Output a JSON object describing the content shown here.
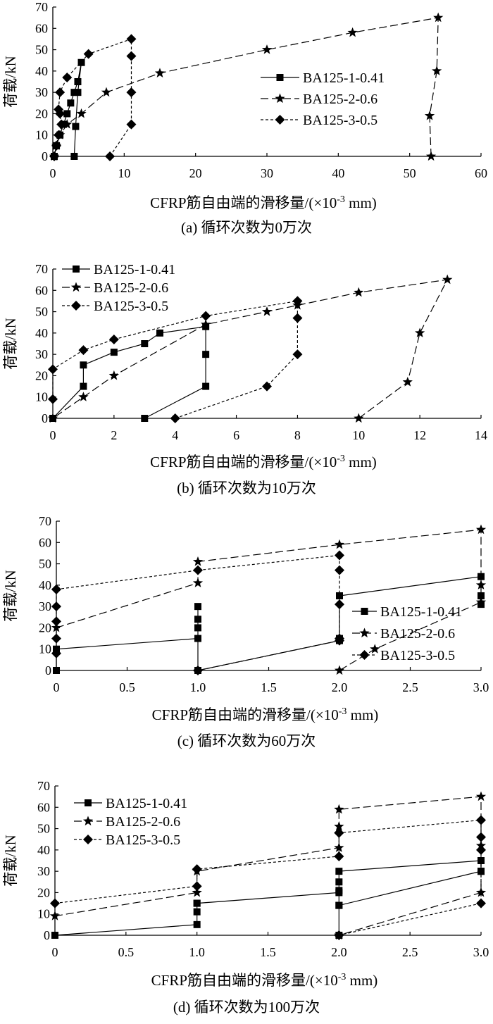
{
  "figure": {
    "xlabel_base": "CFRP筋自由端的滑移量/(×10",
    "xlabel_exp": "-3",
    "xlabel_unit": " mm)"
  },
  "series_styles": {
    "BA125-1-0.41": {
      "marker": "square",
      "dash": "solid"
    },
    "BA125-2-0.6": {
      "marker": "star",
      "dash": "dashed"
    },
    "BA125-3-0.5": {
      "marker": "diamond",
      "dash": "dotted"
    }
  },
  "chart_data": [
    {
      "type": "line",
      "caption": "(a) 循环次数为0万次",
      "ylabel": "荷载/kN",
      "xlim": [
        0,
        60
      ],
      "ylim": [
        0,
        70
      ],
      "xticks": [
        0,
        10,
        20,
        30,
        40,
        50,
        60
      ],
      "xtick_labels": [
        "0",
        "10",
        "20",
        "30",
        "40",
        "50",
        "60"
      ],
      "yticks": [
        0,
        10,
        20,
        30,
        40,
        50,
        60,
        70
      ],
      "legend": "top-right",
      "series": [
        {
          "name": "BA125-1-0.41",
          "x": [
            3,
            3.2,
            3.5,
            4,
            3.5,
            3,
            2.5,
            2,
            1.5,
            1,
            0.5,
            0.2
          ],
          "y": [
            0,
            14,
            30,
            44,
            35,
            30,
            25,
            20,
            15,
            10,
            5,
            0
          ]
        },
        {
          "name": "BA125-2-0.6",
          "x": [
            53,
            52.8,
            53.8,
            54,
            42,
            30,
            15,
            7.5,
            4,
            2,
            1,
            0.5,
            0.2
          ],
          "y": [
            0,
            19,
            40,
            65,
            58,
            50,
            39,
            30,
            20,
            15,
            10,
            5,
            0
          ]
        },
        {
          "name": "BA125-3-0.5",
          "x": [
            8,
            11,
            11,
            11,
            11,
            5,
            2,
            1,
            0.8,
            1,
            1.2,
            0.8,
            0.5,
            0.2
          ],
          "y": [
            0,
            15,
            30,
            47,
            55,
            48,
            37,
            30,
            22,
            20,
            15,
            10,
            5,
            0
          ]
        }
      ]
    },
    {
      "type": "line",
      "caption": "(b) 循环次数为10万次",
      "ylabel": "荷载/kN",
      "xlim": [
        0,
        14
      ],
      "ylim": [
        0,
        70
      ],
      "xticks": [
        0,
        2,
        4,
        6,
        8,
        10,
        12,
        14
      ],
      "xtick_labels": [
        "0",
        "2",
        "4",
        "6",
        "8",
        "10",
        "12",
        "14"
      ],
      "yticks": [
        0,
        10,
        20,
        30,
        40,
        50,
        60,
        70
      ],
      "legend": "top-left",
      "series": [
        {
          "name": "BA125-1-0.41",
          "x": [
            3,
            5,
            5,
            5,
            3.5,
            3,
            2,
            1,
            1,
            0
          ],
          "y": [
            0,
            15,
            30,
            43,
            40,
            35,
            31,
            25,
            15,
            0
          ]
        },
        {
          "name": "BA125-2-0.6",
          "x": [
            10,
            11.6,
            12,
            12.9,
            10,
            8,
            7,
            5,
            2,
            1,
            0
          ],
          "y": [
            0,
            17,
            40,
            65,
            59,
            53,
            50,
            44,
            20,
            10,
            0
          ]
        },
        {
          "name": "BA125-3-0.5",
          "x": [
            4,
            7,
            8,
            8,
            8,
            5,
            2,
            1,
            0,
            0
          ],
          "y": [
            0,
            15,
            30,
            47,
            55,
            48,
            37,
            32,
            23,
            9
          ]
        }
      ]
    },
    {
      "type": "line",
      "caption": "(c) 循环次数为60万次",
      "ylabel": "荷载/kN",
      "xlim": [
        0,
        3.0
      ],
      "ylim": [
        0,
        70
      ],
      "xticks": [
        0,
        0.5,
        1.0,
        1.5,
        2.0,
        2.5,
        3.0
      ],
      "xtick_labels": [
        "0",
        "0.5",
        "1.0",
        "1.5",
        "2.0",
        "2.5",
        "3.0"
      ],
      "yticks": [
        0,
        10,
        20,
        30,
        40,
        50,
        60,
        70
      ],
      "legend": "right",
      "series": [
        {
          "name": "BA125-1-0.41",
          "x": [
            0,
            0,
            1.0,
            1.0,
            1.0,
            1.0,
            1.0,
            1.0,
            2.0,
            2.0,
            2.0,
            3.0,
            3.0,
            3.0
          ],
          "y": [
            0,
            10,
            15,
            20,
            24,
            30,
            0,
            0,
            14,
            15,
            35,
            44,
            35,
            31
          ]
        },
        {
          "name": "BA125-2-0.6",
          "x": [
            0,
            1.0,
            1.0,
            2.0,
            3.0,
            3.0,
            3.0,
            2.25,
            2.0
          ],
          "y": [
            20,
            41,
            51,
            59,
            66,
            40,
            32,
            10,
            0
          ]
        },
        {
          "name": "BA125-3-0.5",
          "x": [
            0,
            0,
            0,
            0,
            0,
            0,
            1.0,
            2.0,
            2.0,
            2.0,
            2.0,
            2.0,
            1.0
          ],
          "y": [
            8,
            15,
            23,
            30,
            38,
            38,
            47,
            54,
            47,
            31,
            15,
            14,
            0
          ]
        }
      ]
    },
    {
      "type": "line",
      "caption": "(d) 循环次数为100万次",
      "ylabel": "荷载/kN",
      "xlim": [
        0,
        3.0
      ],
      "ylim": [
        0,
        70
      ],
      "xticks": [
        0,
        0.5,
        1.0,
        1.5,
        2.0,
        2.5,
        3.0
      ],
      "xtick_labels": [
        "0",
        "0.5",
        "1.0",
        "1.5",
        "2.0",
        "2.5",
        "3.0"
      ],
      "yticks": [
        0,
        10,
        20,
        30,
        40,
        50,
        60,
        70
      ],
      "legend": "top-left",
      "series": [
        {
          "name": "BA125-1-0.41",
          "x": [
            0,
            1.0,
            1.0,
            1.0,
            1.0,
            2.0,
            2.0,
            2.0,
            2.0,
            2.0,
            3.0,
            3.0,
            3.0,
            3.0,
            2.0,
            2.0
          ],
          "y": [
            0,
            5,
            11,
            15,
            15,
            20,
            14,
            21,
            25,
            30,
            35,
            30,
            30,
            30,
            14,
            0
          ]
        },
        {
          "name": "BA125-2-0.6",
          "x": [
            0,
            1.0,
            1.0,
            2.0,
            2.0,
            2.0,
            3.0,
            3.0,
            3.0,
            2.0
          ],
          "y": [
            9,
            20,
            30,
            41,
            51,
            59,
            65,
            42,
            20,
            0
          ]
        },
        {
          "name": "BA125-3-0.5",
          "x": [
            0,
            1.0,
            1.0,
            2.0,
            2.0,
            2.0,
            3.0,
            3.0,
            3.0,
            3.0,
            2.0
          ],
          "y": [
            15,
            23,
            31,
            37,
            48,
            48,
            54,
            46,
            40,
            15,
            0
          ]
        }
      ]
    }
  ]
}
